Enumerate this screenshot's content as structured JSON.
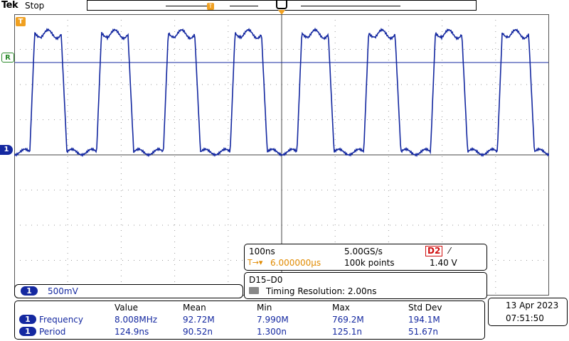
{
  "header": {
    "brand": "Tek",
    "run_state": "Stop"
  },
  "markers": {
    "trigger": "T",
    "reference": "R",
    "channel": "1"
  },
  "channel": {
    "number": "1",
    "scale": "500mV",
    "color": "#1428a0"
  },
  "timebase": {
    "horizontal_scale": "100ns",
    "sample_rate": "5.00GS/s",
    "trigger_source": "D2",
    "trigger_slope": "⁄",
    "trigger_delay": "6.000000µs",
    "trigger_delay_prefix": "T→▾",
    "record_length": "100k points",
    "trigger_level": "1.40 V"
  },
  "digital": {
    "label": "D15–D0",
    "timing_resolution": "Timing Resolution: 2.00ns"
  },
  "measurements": {
    "headers": [
      "Value",
      "Mean",
      "Min",
      "Max",
      "Std Dev"
    ],
    "rows": [
      {
        "channel": "1",
        "name": "Frequency",
        "values": [
          "8.008MHz",
          "92.72M",
          "7.990M",
          "769.2M",
          "194.1M"
        ]
      },
      {
        "channel": "1",
        "name": "Period",
        "values": [
          "124.9ns",
          "90.52n",
          "1.300n",
          "125.1n",
          "51.67n"
        ]
      }
    ]
  },
  "clock": {
    "date": "13 Apr  2023",
    "time": "07:51:50"
  }
}
